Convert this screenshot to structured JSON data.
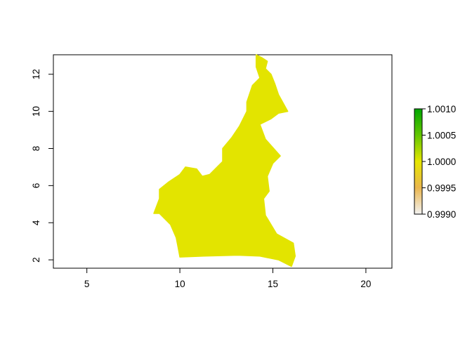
{
  "chart_data": {
    "type": "raster-map",
    "xlim": [
      3.2,
      21.4
    ],
    "ylim": [
      1.55,
      13.05
    ],
    "x_ticks": [
      "5",
      "10",
      "15",
      "20"
    ],
    "y_ticks": [
      "2",
      "4",
      "6",
      "8",
      "10",
      "12"
    ],
    "region_value": 1.0,
    "region_color": "#e3e400",
    "legend": {
      "position": "right",
      "min": 0.999,
      "max": 1.001,
      "ticks": [
        "1.0010",
        "1.0005",
        "1.0000",
        "0.9995",
        "0.9990"
      ],
      "colors": [
        "#00a600",
        "#63c600",
        "#e6e600",
        "#eab64e",
        "#f2f2f2"
      ]
    },
    "outline_lonlat": [
      [
        14.1,
        13.05
      ],
      [
        14.4,
        12.9
      ],
      [
        14.7,
        12.7
      ],
      [
        14.6,
        12.3
      ],
      [
        14.9,
        12.0
      ],
      [
        15.1,
        11.5
      ],
      [
        15.3,
        10.9
      ],
      [
        15.8,
        10.0
      ],
      [
        15.3,
        9.9
      ],
      [
        14.9,
        9.6
      ],
      [
        14.3,
        9.3
      ],
      [
        14.6,
        8.5
      ],
      [
        15.4,
        7.6
      ],
      [
        15.0,
        7.2
      ],
      [
        14.7,
        6.5
      ],
      [
        14.8,
        5.7
      ],
      [
        14.5,
        5.3
      ],
      [
        14.6,
        4.4
      ],
      [
        15.2,
        3.4
      ],
      [
        16.1,
        2.9
      ],
      [
        16.2,
        2.2
      ],
      [
        16.0,
        1.65
      ],
      [
        15.3,
        2.0
      ],
      [
        14.3,
        2.2
      ],
      [
        13.1,
        2.25
      ],
      [
        11.3,
        2.2
      ],
      [
        10.0,
        2.15
      ],
      [
        9.9,
        2.7
      ],
      [
        9.8,
        3.2
      ],
      [
        9.5,
        3.9
      ],
      [
        8.9,
        4.5
      ],
      [
        8.6,
        4.5
      ],
      [
        8.9,
        5.3
      ],
      [
        8.9,
        5.8
      ],
      [
        9.4,
        6.2
      ],
      [
        10.0,
        6.6
      ],
      [
        10.3,
        7.0
      ],
      [
        10.9,
        6.9
      ],
      [
        11.2,
        6.5
      ],
      [
        11.6,
        6.6
      ],
      [
        12.3,
        7.3
      ],
      [
        12.3,
        8.0
      ],
      [
        12.8,
        8.6
      ],
      [
        13.2,
        9.2
      ],
      [
        13.6,
        10.0
      ],
      [
        13.6,
        10.5
      ],
      [
        13.9,
        11.4
      ],
      [
        14.3,
        11.8
      ],
      [
        14.1,
        12.4
      ]
    ]
  }
}
